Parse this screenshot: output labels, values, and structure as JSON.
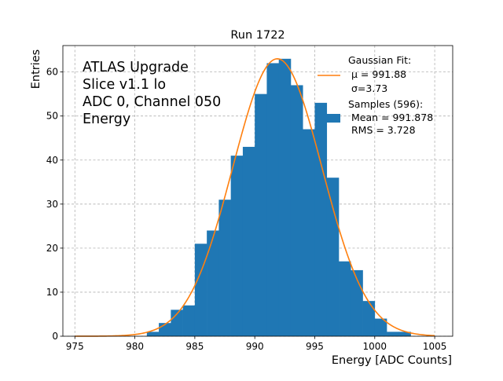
{
  "chart_data": {
    "type": "bar",
    "title": "Run 1722",
    "xlabel": "Energy [ADC Counts]",
    "ylabel": "Entries",
    "xlim": [
      974,
      1006.5
    ],
    "ylim": [
      0,
      66
    ],
    "xticks": [
      975,
      980,
      985,
      990,
      995,
      1000,
      1005
    ],
    "yticks": [
      0,
      10,
      20,
      30,
      40,
      50,
      60
    ],
    "grid": true,
    "legend_placement": "top-right",
    "bin_width": 1,
    "bins": [
      {
        "x": 981,
        "count": 1
      },
      {
        "x": 982,
        "count": 3
      },
      {
        "x": 983,
        "count": 6
      },
      {
        "x": 984,
        "count": 7
      },
      {
        "x": 985,
        "count": 21
      },
      {
        "x": 986,
        "count": 24
      },
      {
        "x": 987,
        "count": 31
      },
      {
        "x": 988,
        "count": 41
      },
      {
        "x": 989,
        "count": 43
      },
      {
        "x": 990,
        "count": 55
      },
      {
        "x": 991,
        "count": 62
      },
      {
        "x": 992,
        "count": 63
      },
      {
        "x": 993,
        "count": 57
      },
      {
        "x": 994,
        "count": 47
      },
      {
        "x": 995,
        "count": 53
      },
      {
        "x": 996,
        "count": 36
      },
      {
        "x": 997,
        "count": 17
      },
      {
        "x": 998,
        "count": 15
      },
      {
        "x": 999,
        "count": 8
      },
      {
        "x": 1000,
        "count": 4
      },
      {
        "x": 1001,
        "count": 1
      },
      {
        "x": 1002,
        "count": 1
      }
    ],
    "fit": {
      "mean": 991.88,
      "sigma": 3.73,
      "amplitude": 63,
      "x_range": [
        975,
        1005
      ]
    },
    "annotation_lines": [
      "ATLAS Upgrade",
      "Slice v1.1 lo",
      "ADC 0, Channel 050",
      "Energy"
    ],
    "legend": {
      "fit_lines": [
        "Gaussian Fit:",
        "μ = 991.88",
        "σ=3.73"
      ],
      "samples_lines": [
        "Samples (596):",
        " Mean = 991.878",
        " RMS = 3.728"
      ]
    },
    "colors": {
      "bars": "#1f77b4",
      "fit": "#ff7f0e",
      "grid": "#b0b0b0"
    }
  }
}
